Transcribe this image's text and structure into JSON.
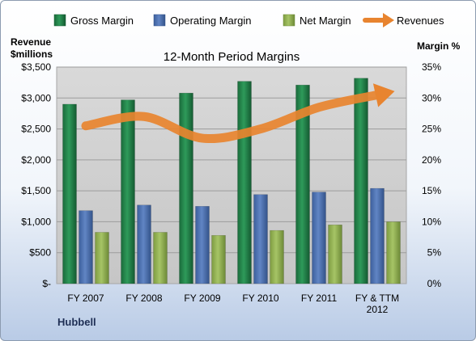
{
  "chart_data": {
    "type": "bar",
    "title": "12-Month Period Margins",
    "company": "Hubbell",
    "categories": [
      [
        "FY 2007"
      ],
      [
        "FY 2008"
      ],
      [
        "FY 2009"
      ],
      [
        "FY 2010"
      ],
      [
        "FY 2011"
      ],
      [
        "FY & TTM",
        "2012"
      ]
    ],
    "series": [
      {
        "name": "Gross Margin",
        "type": "bar",
        "axis": "left",
        "color": "#1f7a45",
        "values": [
          2900,
          2970,
          3080,
          3270,
          3210,
          3320
        ]
      },
      {
        "name": "Operating Margin",
        "type": "bar",
        "axis": "left",
        "color": "#4a6fae",
        "values": [
          1180,
          1270,
          1250,
          1440,
          1480,
          1540
        ]
      },
      {
        "name": "Net Margin",
        "type": "bar",
        "axis": "left",
        "color": "#8fae4f",
        "values": [
          830,
          830,
          780,
          860,
          950,
          1000
        ]
      },
      {
        "name": "Revenues",
        "type": "line",
        "axis": "right",
        "color": "#e8842f",
        "values": [
          25.5,
          27,
          23.5,
          25,
          28.5,
          30.5
        ]
      }
    ],
    "y_left": {
      "label_lines": [
        "Revenue",
        "$millions"
      ],
      "min": 0,
      "max": 3500,
      "step": 500,
      "tick_labels": [
        "$-",
        "$500",
        "$1,000",
        "$1,500",
        "$2,000",
        "$2,500",
        "$3,000",
        "$3,500"
      ]
    },
    "y_right": {
      "label": "Margin %",
      "min": 0,
      "max": 35,
      "step": 5,
      "tick_labels": [
        "0%",
        "5%",
        "10%",
        "15%",
        "20%",
        "25%",
        "30%",
        "35%"
      ]
    },
    "legend": {
      "placement": "top"
    },
    "grid": true
  }
}
